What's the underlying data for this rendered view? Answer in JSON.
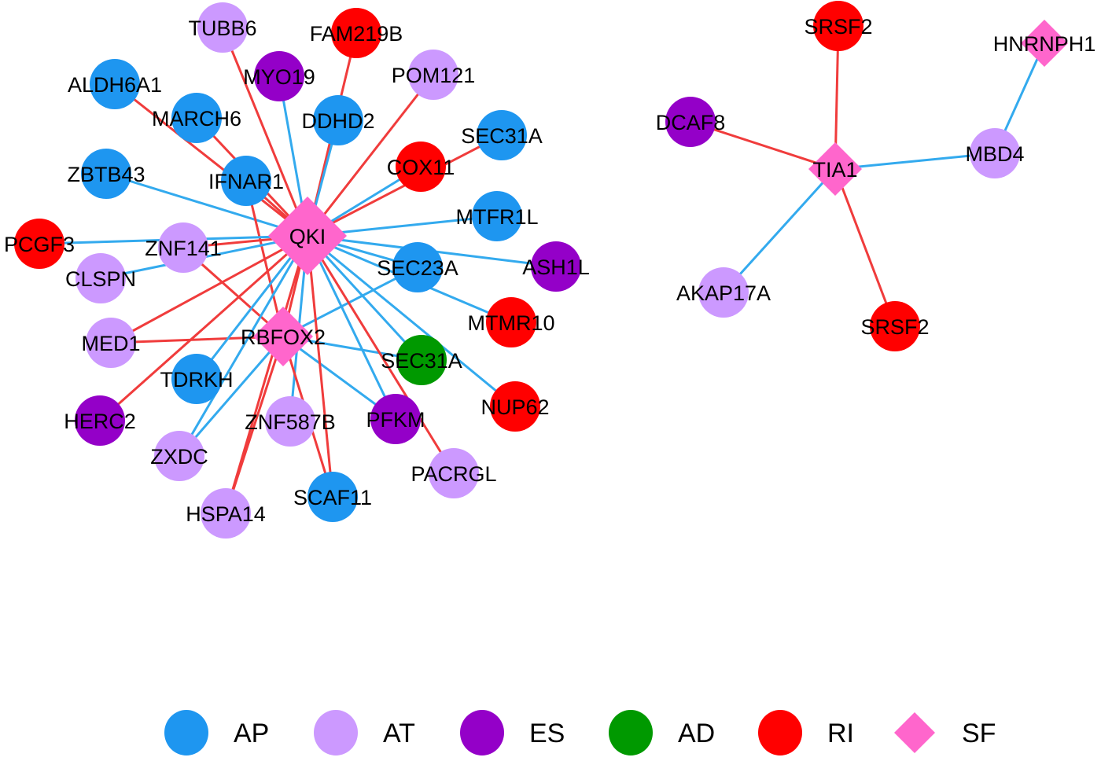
{
  "colors": {
    "AP": "#1e96f0",
    "AT": "#cc99ff",
    "ES": "#9400c8",
    "AD": "#009900",
    "RI": "#ff0000",
    "SF": "#ff66cc",
    "edge_red": "#f03c3c",
    "edge_blue": "#33aaee"
  },
  "nodes": [
    {
      "id": "QKI",
      "label": "QKI",
      "type": "SF"
    },
    {
      "id": "RBFOX2",
      "label": "RBFOX2",
      "type": "SF"
    },
    {
      "id": "TUBB6",
      "label": "TUBB6",
      "type": "AT"
    },
    {
      "id": "FAM219B",
      "label": "FAM219B",
      "type": "RI"
    },
    {
      "id": "MYO19",
      "label": "MYO19",
      "type": "ES"
    },
    {
      "id": "POM121",
      "label": "POM121",
      "type": "AT"
    },
    {
      "id": "ALDH6A1",
      "label": "ALDH6A1",
      "type": "AP"
    },
    {
      "id": "MARCH6",
      "label": "MARCH6",
      "type": "AP"
    },
    {
      "id": "DDHD2",
      "label": "DDHD2",
      "type": "AP"
    },
    {
      "id": "SEC31A_1",
      "label": "SEC31A",
      "type": "AP"
    },
    {
      "id": "COX11",
      "label": "COX11",
      "type": "RI"
    },
    {
      "id": "ZBTB43",
      "label": "ZBTB43",
      "type": "AP"
    },
    {
      "id": "IFNAR1",
      "label": "IFNAR1",
      "type": "AP"
    },
    {
      "id": "MTFR1L",
      "label": "MTFR1L",
      "type": "AP"
    },
    {
      "id": "PCGF3",
      "label": "PCGF3",
      "type": "RI"
    },
    {
      "id": "ZNF141",
      "label": "ZNF141",
      "type": "AT"
    },
    {
      "id": "CLSPN",
      "label": "CLSPN",
      "type": "AT"
    },
    {
      "id": "SEC23A",
      "label": "SEC23A",
      "type": "AP"
    },
    {
      "id": "ASH1L",
      "label": "ASH1L",
      "type": "ES"
    },
    {
      "id": "MTMR10",
      "label": "MTMR10",
      "type": "RI"
    },
    {
      "id": "MED1",
      "label": "MED1",
      "type": "AT"
    },
    {
      "id": "SEC31A_2",
      "label": "SEC31A",
      "type": "AD"
    },
    {
      "id": "TDRKH",
      "label": "TDRKH",
      "type": "AP"
    },
    {
      "id": "NUP62",
      "label": "NUP62",
      "type": "RI"
    },
    {
      "id": "HERC2",
      "label": "HERC2",
      "type": "ES"
    },
    {
      "id": "ZNF587B",
      "label": "ZNF587B",
      "type": "AT"
    },
    {
      "id": "PFKM",
      "label": "PFKM",
      "type": "ES"
    },
    {
      "id": "ZXDC",
      "label": "ZXDC",
      "type": "AT"
    },
    {
      "id": "PACRGL",
      "label": "PACRGL",
      "type": "AT"
    },
    {
      "id": "SCAF11",
      "label": "SCAF11",
      "type": "AP"
    },
    {
      "id": "HSPA14",
      "label": "HSPA14",
      "type": "AT"
    },
    {
      "id": "TIA1",
      "label": "TIA1",
      "type": "SF"
    },
    {
      "id": "HNRNPH1",
      "label": "HNRNPH1",
      "type": "SF"
    },
    {
      "id": "SRSF2_1",
      "label": "SRSF2",
      "type": "RI"
    },
    {
      "id": "DCAF8",
      "label": "DCAF8",
      "type": "ES"
    },
    {
      "id": "MBD4",
      "label": "MBD4",
      "type": "AT"
    },
    {
      "id": "AKAP17A",
      "label": "AKAP17A",
      "type": "AT"
    },
    {
      "id": "SRSF2_2",
      "label": "SRSF2",
      "type": "RI"
    }
  ],
  "edges": [
    {
      "s": "TUBB6",
      "t": "QKI",
      "c": "red"
    },
    {
      "s": "FAM219B",
      "t": "QKI",
      "c": "red"
    },
    {
      "s": "MYO19",
      "t": "QKI",
      "c": "blue"
    },
    {
      "s": "POM121",
      "t": "QKI",
      "c": "red"
    },
    {
      "s": "ALDH6A1",
      "t": "QKI",
      "c": "red"
    },
    {
      "s": "MARCH6",
      "t": "QKI",
      "c": "red"
    },
    {
      "s": "DDHD2",
      "t": "QKI",
      "c": "blue"
    },
    {
      "s": "SEC31A_1",
      "t": "QKI",
      "c": "red"
    },
    {
      "s": "COX11",
      "t": "QKI",
      "c": "blue"
    },
    {
      "s": "ZBTB43",
      "t": "QKI",
      "c": "blue"
    },
    {
      "s": "IFNAR1",
      "t": "QKI",
      "c": "red"
    },
    {
      "s": "IFNAR1",
      "t": "RBFOX2",
      "c": "red"
    },
    {
      "s": "MTFR1L",
      "t": "QKI",
      "c": "blue"
    },
    {
      "s": "PCGF3",
      "t": "QKI",
      "c": "blue"
    },
    {
      "s": "ZNF141",
      "t": "QKI",
      "c": "red"
    },
    {
      "s": "ZNF141",
      "t": "RBFOX2",
      "c": "red"
    },
    {
      "s": "CLSPN",
      "t": "QKI",
      "c": "blue"
    },
    {
      "s": "SEC23A",
      "t": "QKI",
      "c": "blue"
    },
    {
      "s": "SEC23A",
      "t": "RBFOX2",
      "c": "blue"
    },
    {
      "s": "ASH1L",
      "t": "QKI",
      "c": "blue"
    },
    {
      "s": "MTMR10",
      "t": "QKI",
      "c": "blue"
    },
    {
      "s": "MED1",
      "t": "QKI",
      "c": "red"
    },
    {
      "s": "MED1",
      "t": "RBFOX2",
      "c": "red"
    },
    {
      "s": "SEC31A_2",
      "t": "QKI",
      "c": "blue"
    },
    {
      "s": "SEC31A_2",
      "t": "RBFOX2",
      "c": "blue"
    },
    {
      "s": "NUP62",
      "t": "QKI",
      "c": "blue"
    },
    {
      "s": "HERC2",
      "t": "QKI",
      "c": "red"
    },
    {
      "s": "TDRKH",
      "t": "QKI",
      "c": "blue"
    },
    {
      "s": "ZXDC",
      "t": "QKI",
      "c": "blue"
    },
    {
      "s": "ZXDC",
      "t": "RBFOX2",
      "c": "blue"
    },
    {
      "s": "ZNF587B",
      "t": "QKI",
      "c": "blue"
    },
    {
      "s": "PFKM",
      "t": "QKI",
      "c": "blue"
    },
    {
      "s": "PFKM",
      "t": "RBFOX2",
      "c": "blue"
    },
    {
      "s": "PACRGL",
      "t": "QKI",
      "c": "red"
    },
    {
      "s": "SCAF11",
      "t": "QKI",
      "c": "red"
    },
    {
      "s": "SCAF11",
      "t": "RBFOX2",
      "c": "red"
    },
    {
      "s": "HSPA14",
      "t": "QKI",
      "c": "red"
    },
    {
      "s": "HSPA14",
      "t": "RBFOX2",
      "c": "red"
    },
    {
      "s": "QKI",
      "t": "RBFOX2",
      "c": "red"
    },
    {
      "s": "SRSF2_1",
      "t": "TIA1",
      "c": "red"
    },
    {
      "s": "DCAF8",
      "t": "TIA1",
      "c": "red"
    },
    {
      "s": "MBD4",
      "t": "TIA1",
      "c": "blue"
    },
    {
      "s": "HNRNPH1",
      "t": "MBD4",
      "c": "blue"
    },
    {
      "s": "AKAP17A",
      "t": "TIA1",
      "c": "blue"
    },
    {
      "s": "SRSF2_2",
      "t": "TIA1",
      "c": "red"
    }
  ],
  "legend": [
    {
      "type": "AP",
      "label": "AP"
    },
    {
      "type": "AT",
      "label": "AT"
    },
    {
      "type": "ES",
      "label": "ES"
    },
    {
      "type": "AD",
      "label": "AD"
    },
    {
      "type": "RI",
      "label": "RI"
    },
    {
      "type": "SF",
      "label": "SF"
    }
  ]
}
